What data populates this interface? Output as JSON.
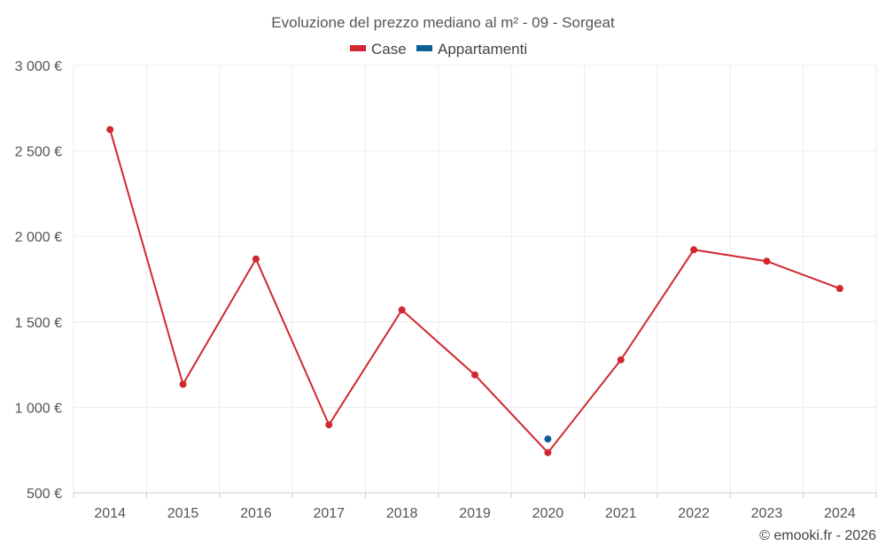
{
  "chart_data": {
    "type": "line",
    "title": "Evoluzione del prezzo mediano al m² - 09 - Sorgeat",
    "categories": [
      "2014",
      "2015",
      "2016",
      "2017",
      "2018",
      "2019",
      "2020",
      "2021",
      "2022",
      "2023",
      "2024"
    ],
    "series": [
      {
        "name": "Case",
        "color": "#d0282e",
        "values": [
          2625,
          1135,
          1868,
          898,
          1570,
          1190,
          735,
          1278,
          1922,
          1855,
          1695
        ]
      },
      {
        "name": "Appartamenti",
        "color": "#0b5f96",
        "values": [
          null,
          null,
          null,
          null,
          null,
          null,
          815,
          null,
          null,
          null,
          null
        ]
      }
    ],
    "ylim": [
      500,
      3000
    ],
    "yticks": [
      500,
      1000,
      1500,
      2000,
      2500,
      3000
    ],
    "ytick_labels": [
      "500 €",
      "1 000 €",
      "1 500 €",
      "2 000 €",
      "2 500 €",
      "3 000 €"
    ],
    "xlabel": "",
    "ylabel": "",
    "grid": true,
    "legend_position": "top-center"
  },
  "credit": "© emooki.fr - 2026"
}
